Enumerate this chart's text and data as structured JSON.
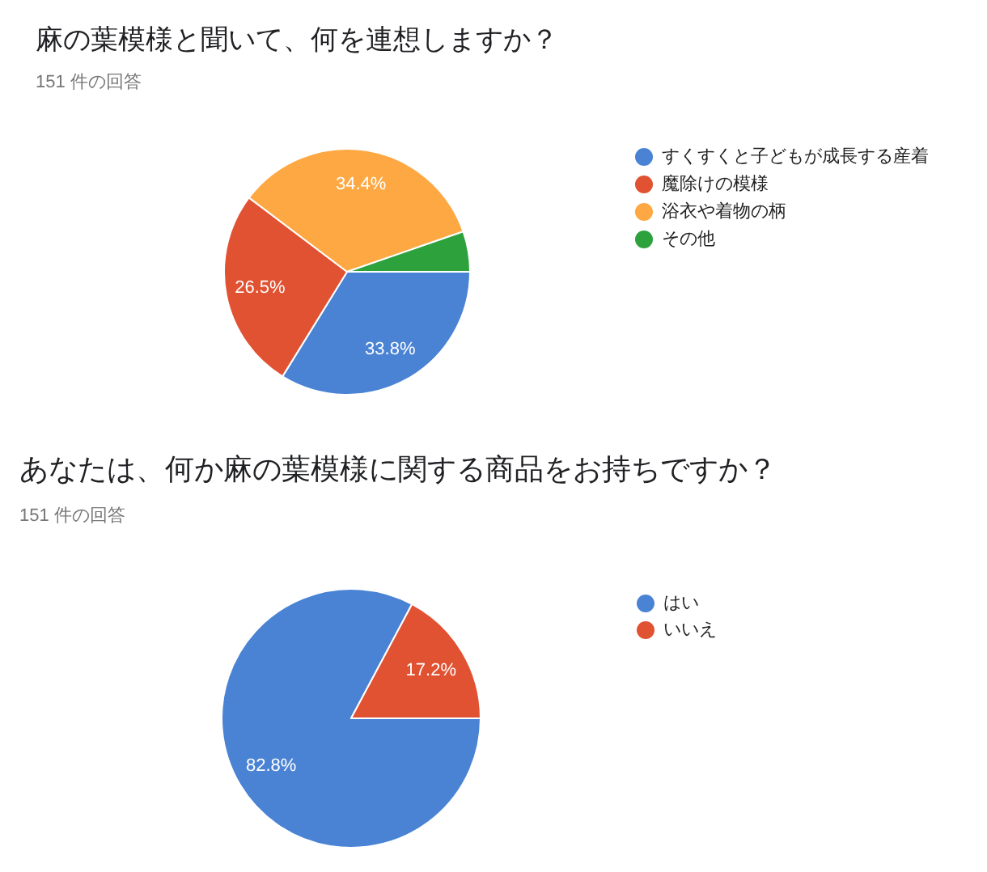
{
  "chart_data": [
    {
      "type": "pie",
      "title": "麻の葉模様と聞いて、何を連想しますか？",
      "subtitle": "151 件の回答",
      "categories": [
        "すくすくと子どもが成長する産着",
        "魔除けの模様",
        "浴衣や着物の柄",
        "その他"
      ],
      "values": [
        33.8,
        26.5,
        34.4,
        5.3
      ],
      "colors": [
        "#4a83d4",
        "#e05232",
        "#fea843",
        "#2ca13c"
      ],
      "value_labels": [
        "33.8%",
        "26.5%",
        "34.4%",
        null
      ],
      "legend": "right"
    },
    {
      "type": "pie",
      "title": "あなたは、何か麻の葉模様に関する商品をお持ちですか？",
      "subtitle": "151 件の回答",
      "categories": [
        "はい",
        "いいえ"
      ],
      "values": [
        82.8,
        17.2
      ],
      "colors": [
        "#4a83d4",
        "#e05232"
      ],
      "value_labels": [
        "82.8%",
        "17.2%"
      ],
      "legend": "right"
    }
  ]
}
